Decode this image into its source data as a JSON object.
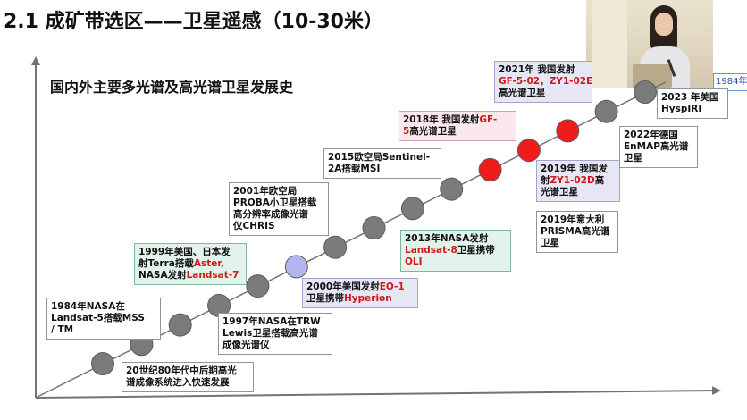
{
  "slide": {
    "title": "2.1 成矿带选区——卫星遥感（10-30米）",
    "subtitle": "国内外主要多光谱及高光谱卫星发展史",
    "edge_label": "1984年N"
  },
  "colors": {
    "axis": "#737373",
    "node_gray": "#7b7b7b",
    "node_purple": "#b3b5ee",
    "node_red": "#ef1c1c",
    "box_green": "#e2f3ec",
    "box_lavender": "#e6e6f5",
    "box_pink": "#fbe8ee",
    "highlight_text": "#d01818"
  },
  "timeline": {
    "node_colors": [
      "gray",
      "gray",
      "gray",
      "gray",
      "gray",
      "purple",
      "gray",
      "gray",
      "gray",
      "gray",
      "red",
      "red",
      "red",
      "gray",
      "gray"
    ]
  },
  "events": [
    {
      "id": "e-1984-landsat5",
      "style": "white",
      "lines": [
        [
          {
            "t": "1984年NASA在"
          }
        ],
        [
          {
            "t": "Landsat-5搭载MSS"
          }
        ],
        [
          {
            "t": "/ TM"
          }
        ]
      ]
    },
    {
      "id": "e-1980s-imaging",
      "style": "white",
      "lines": [
        [
          {
            "t": "20世纪80年代中后期高光"
          }
        ],
        [
          {
            "t": "谱成像系统进入快速发展"
          }
        ]
      ]
    },
    {
      "id": "e-1997-trw-lewis",
      "style": "white",
      "lines": [
        [
          {
            "t": "1997年NASA在TRW"
          }
        ],
        [
          {
            "t": "Lewis卫星搭载高光谱"
          }
        ],
        [
          {
            "t": "成像光谱仪"
          }
        ]
      ]
    },
    {
      "id": "e-1999-terra",
      "style": "green",
      "lines": [
        [
          {
            "t": "1999年美国、日本发"
          }
        ],
        [
          {
            "t": "射Terra搭载"
          },
          {
            "t": "Aster",
            "hl": true
          },
          {
            "t": ","
          }
        ],
        [
          {
            "t": "NASA发射"
          },
          {
            "t": "Landsat-7",
            "hl": true
          }
        ]
      ]
    },
    {
      "id": "e-2000-eo1",
      "style": "lavender",
      "lines": [
        [
          {
            "t": "2000年美国发射"
          },
          {
            "t": "EO-1",
            "hl": true
          }
        ],
        [
          {
            "t": "卫星携带"
          },
          {
            "t": "Hyperion",
            "hl": true
          }
        ]
      ]
    },
    {
      "id": "e-2001-proba",
      "style": "white",
      "lines": [
        [
          {
            "t": "2001年欧空局"
          }
        ],
        [
          {
            "t": "PROBA小卫星搭载"
          }
        ],
        [
          {
            "t": "高分辨率成像光谱"
          }
        ],
        [
          {
            "t": "仪CHRIS"
          }
        ]
      ]
    },
    {
      "id": "e-2013-landsat8",
      "style": "green",
      "lines": [
        [
          {
            "t": "2013年NASA发射"
          }
        ],
        [
          {
            "t": "Landsat-8",
            "hl": true
          },
          {
            "t": "卫星携带"
          }
        ],
        [
          {
            "t": "OLI",
            "hl": true
          }
        ]
      ]
    },
    {
      "id": "e-2015-sentinel",
      "style": "white",
      "lines": [
        [
          {
            "t": "2015欧空局Sentinel-"
          }
        ],
        [
          {
            "t": "2A搭载MSI"
          }
        ]
      ]
    },
    {
      "id": "e-2018-gf5",
      "style": "pink",
      "lines": [
        [
          {
            "t": "2018年 我国发射"
          },
          {
            "t": "GF-",
            "hl": true
          }
        ],
        [
          {
            "t": "5",
            "hl": true
          },
          {
            "t": "高光谱卫星"
          }
        ]
      ]
    },
    {
      "id": "e-2019-zy1",
      "style": "lavender",
      "lines": [
        [
          {
            "t": "2019年 我国发"
          }
        ],
        [
          {
            "t": "射"
          },
          {
            "t": "ZY1-02D",
            "hl": true
          },
          {
            "t": "高"
          }
        ],
        [
          {
            "t": "光谱卫星"
          }
        ]
      ]
    },
    {
      "id": "e-2019-prisma",
      "style": "white",
      "lines": [
        [
          {
            "t": "2019年意大利"
          }
        ],
        [
          {
            "t": "PRISMA高光谱"
          }
        ],
        [
          {
            "t": "卫星"
          }
        ]
      ]
    },
    {
      "id": "e-2021-gf5-02",
      "style": "lavender",
      "lines": [
        [
          {
            "t": "2021年 我国发射"
          }
        ],
        [
          {
            "t": "GF-5-02，ZY1-02E",
            "hl": true
          }
        ],
        [
          {
            "t": "高光谱卫星"
          }
        ]
      ]
    },
    {
      "id": "e-2022-enmap",
      "style": "white",
      "lines": [
        [
          {
            "t": "2022年德国"
          }
        ],
        [
          {
            "t": "EnMAP高光谱"
          }
        ],
        [
          {
            "t": "卫星"
          }
        ]
      ]
    },
    {
      "id": "e-2023-hyspiri",
      "style": "white",
      "lines": [
        [
          {
            "t": "2023 年美国"
          }
        ],
        [
          {
            "t": "HyspIRI"
          }
        ]
      ]
    }
  ]
}
